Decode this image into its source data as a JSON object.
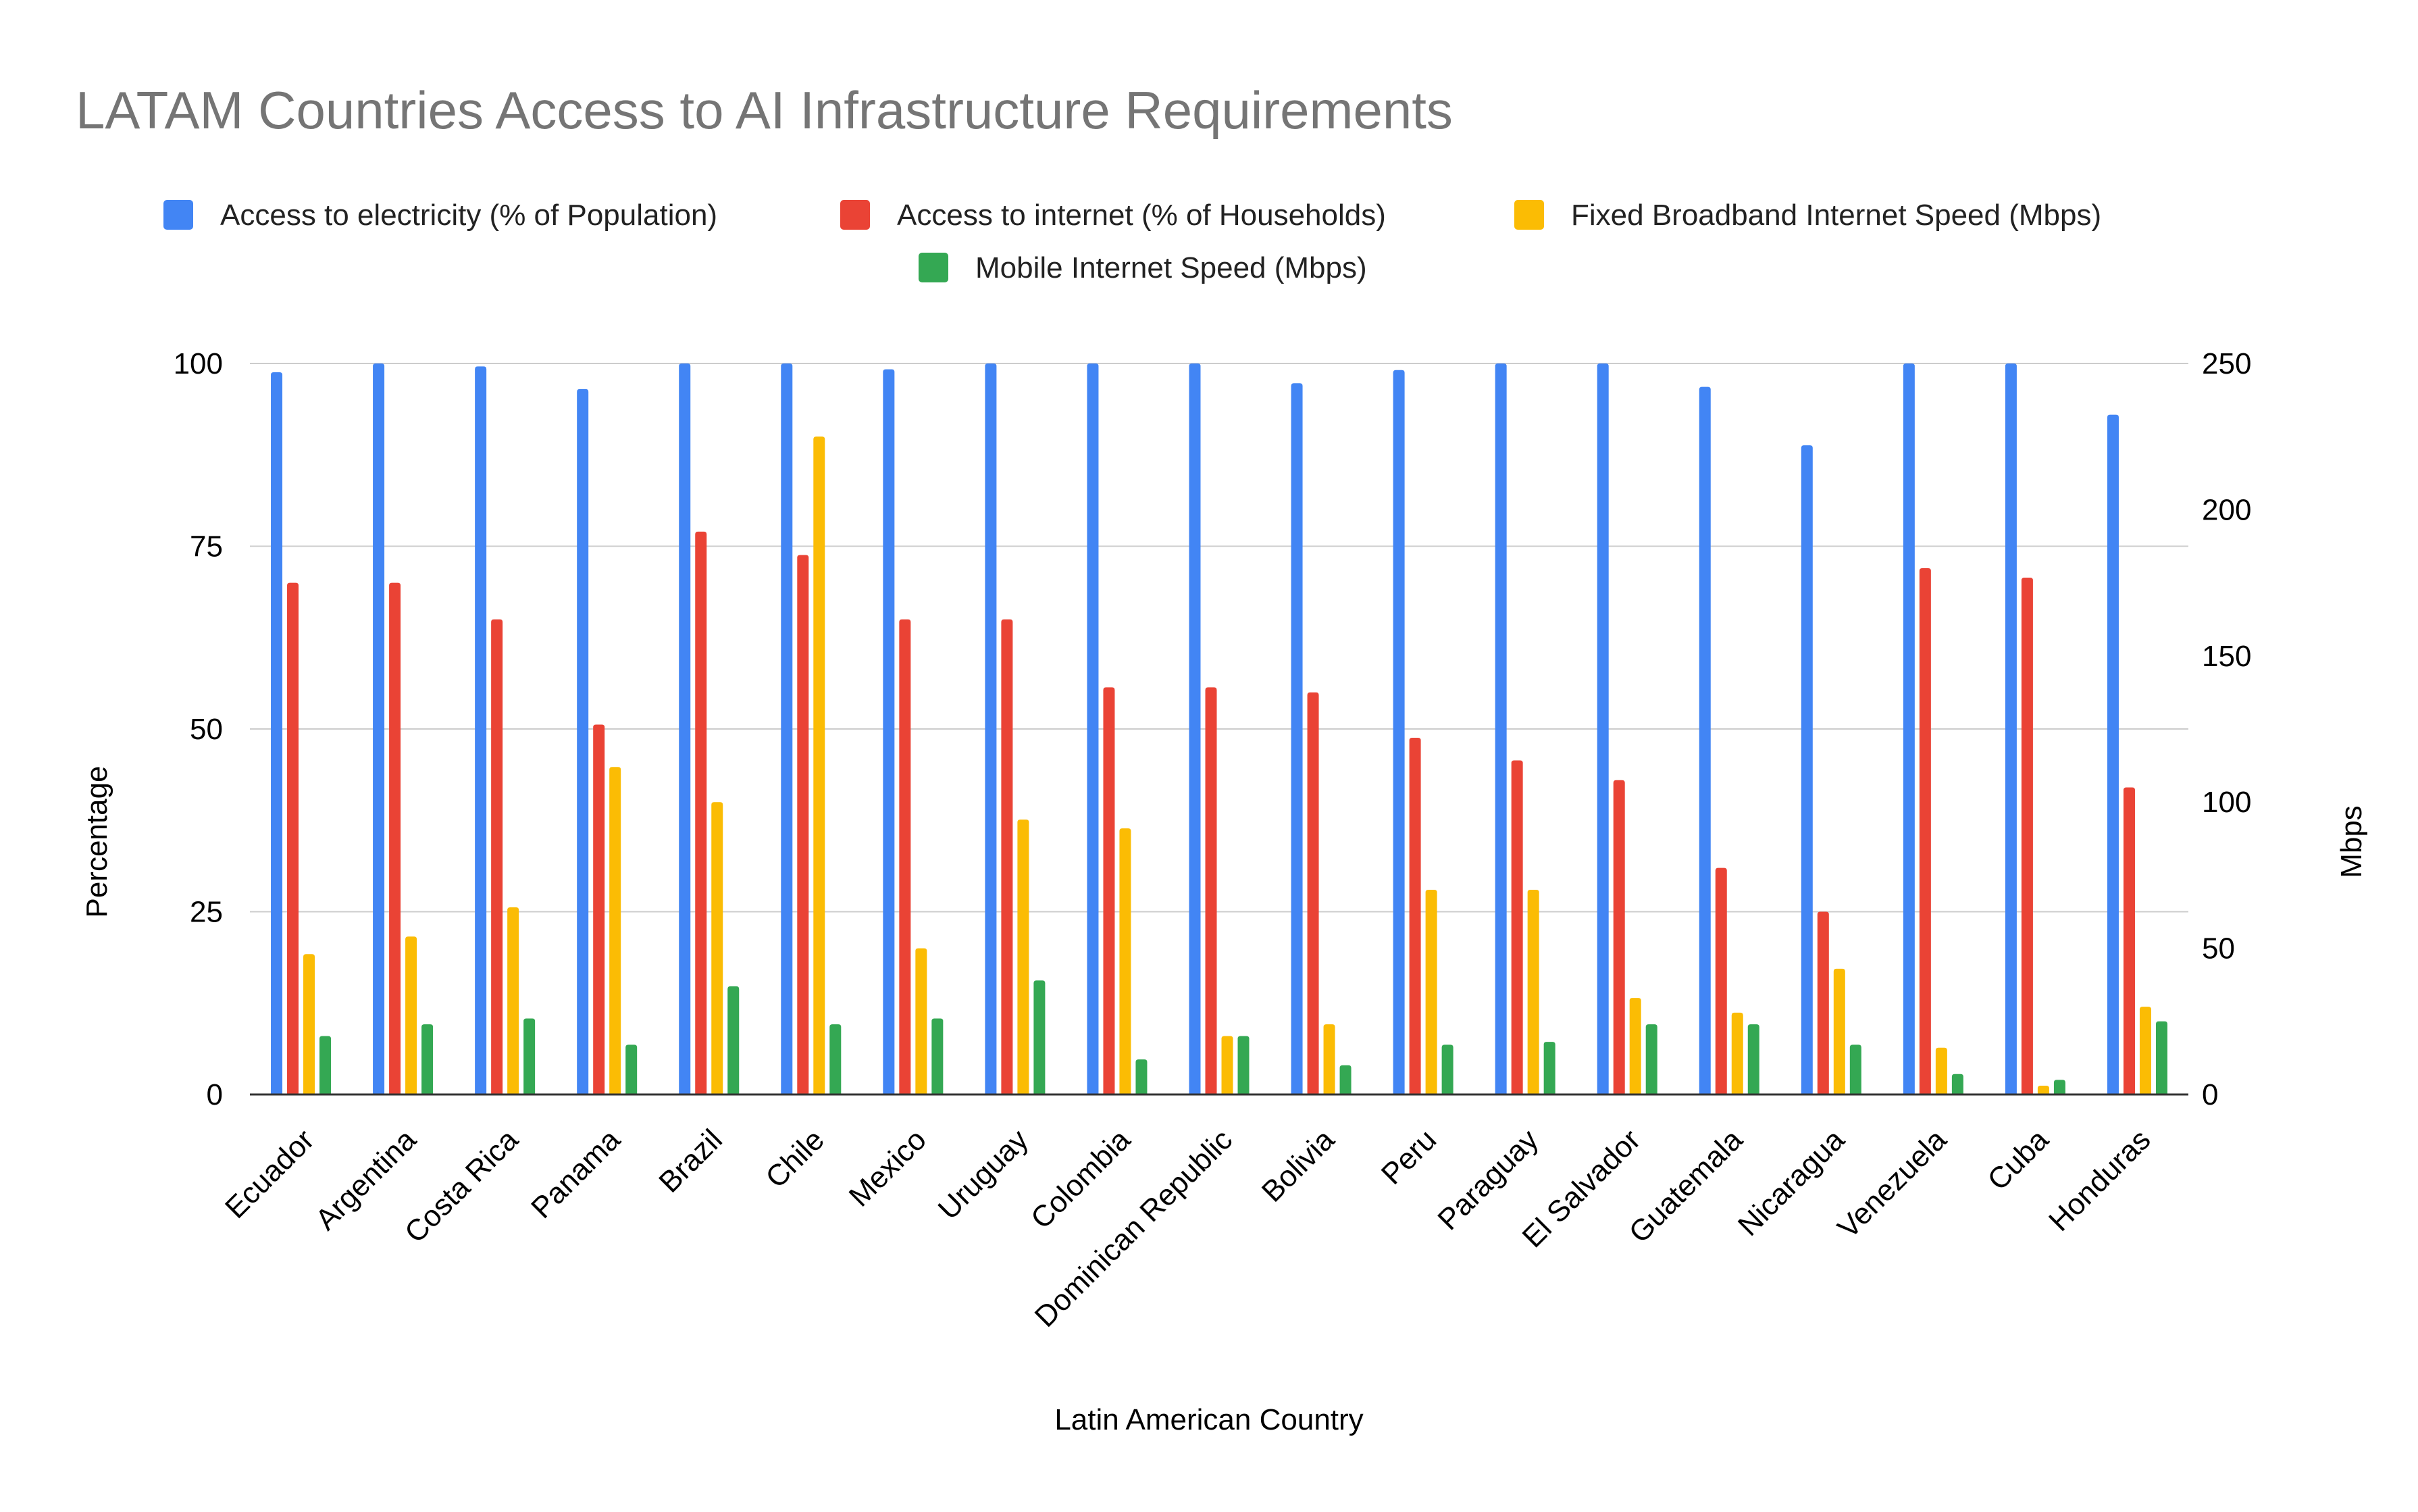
{
  "chart_data": {
    "type": "bar",
    "title": "LATAM Countries Access to AI Infrastructure Requirements",
    "xlabel": "Latin American Country",
    "ylabel": "Percentage",
    "ylabel_right": "Mbps",
    "ylim": [
      0,
      100
    ],
    "ylim_right": [
      0,
      250
    ],
    "yticks": [
      "0",
      "25",
      "50",
      "75",
      "100"
    ],
    "yticks_right": [
      "0",
      "50",
      "100",
      "150",
      "200",
      "250"
    ],
    "grid": true,
    "legend_position": "top",
    "categories": [
      "Ecuador",
      "Argentina",
      "Costa Rica",
      "Panama",
      "Brazil",
      "Chile",
      "Mexico",
      "Uruguay",
      "Colombia",
      "Dominican Republic",
      "Bolivia",
      "Peru",
      "Paraguay",
      "El Salvador",
      "Guatemala",
      "Nicaragua",
      "Venezuela",
      "Cuba",
      "Honduras"
    ],
    "series": [
      {
        "name": "Access to electricity (% of Population)",
        "axis": "left",
        "color": "#4285F4",
        "values": [
          98.8,
          100,
          99.6,
          96.5,
          100,
          100,
          99.2,
          100,
          100,
          100,
          97.3,
          99.1,
          100,
          100,
          96.8,
          88.8,
          100,
          100,
          93
        ]
      },
      {
        "name": "Access to internet (% of Households)",
        "axis": "left",
        "color": "#EA4335",
        "values": [
          70,
          70,
          65,
          50.6,
          77,
          73.8,
          65,
          65,
          55.7,
          55.7,
          55,
          48.8,
          45.7,
          43,
          31,
          25,
          72,
          70.7,
          42
        ]
      },
      {
        "name": "Fixed Broadband Internet Speed (Mbps)",
        "axis": "right",
        "color": "#FBBC04",
        "values": [
          48,
          54,
          64,
          112,
          100,
          225,
          50,
          94,
          91,
          20,
          24,
          70,
          70,
          33,
          28,
          43,
          16,
          3,
          30
        ]
      },
      {
        "name": "Mobile Internet Speed (Mbps)",
        "axis": "right",
        "color": "#34A853",
        "values": [
          20,
          24,
          26,
          17,
          37,
          24,
          26,
          39,
          12,
          20,
          10,
          17,
          18,
          24,
          24,
          17,
          7,
          5,
          25
        ]
      }
    ]
  }
}
